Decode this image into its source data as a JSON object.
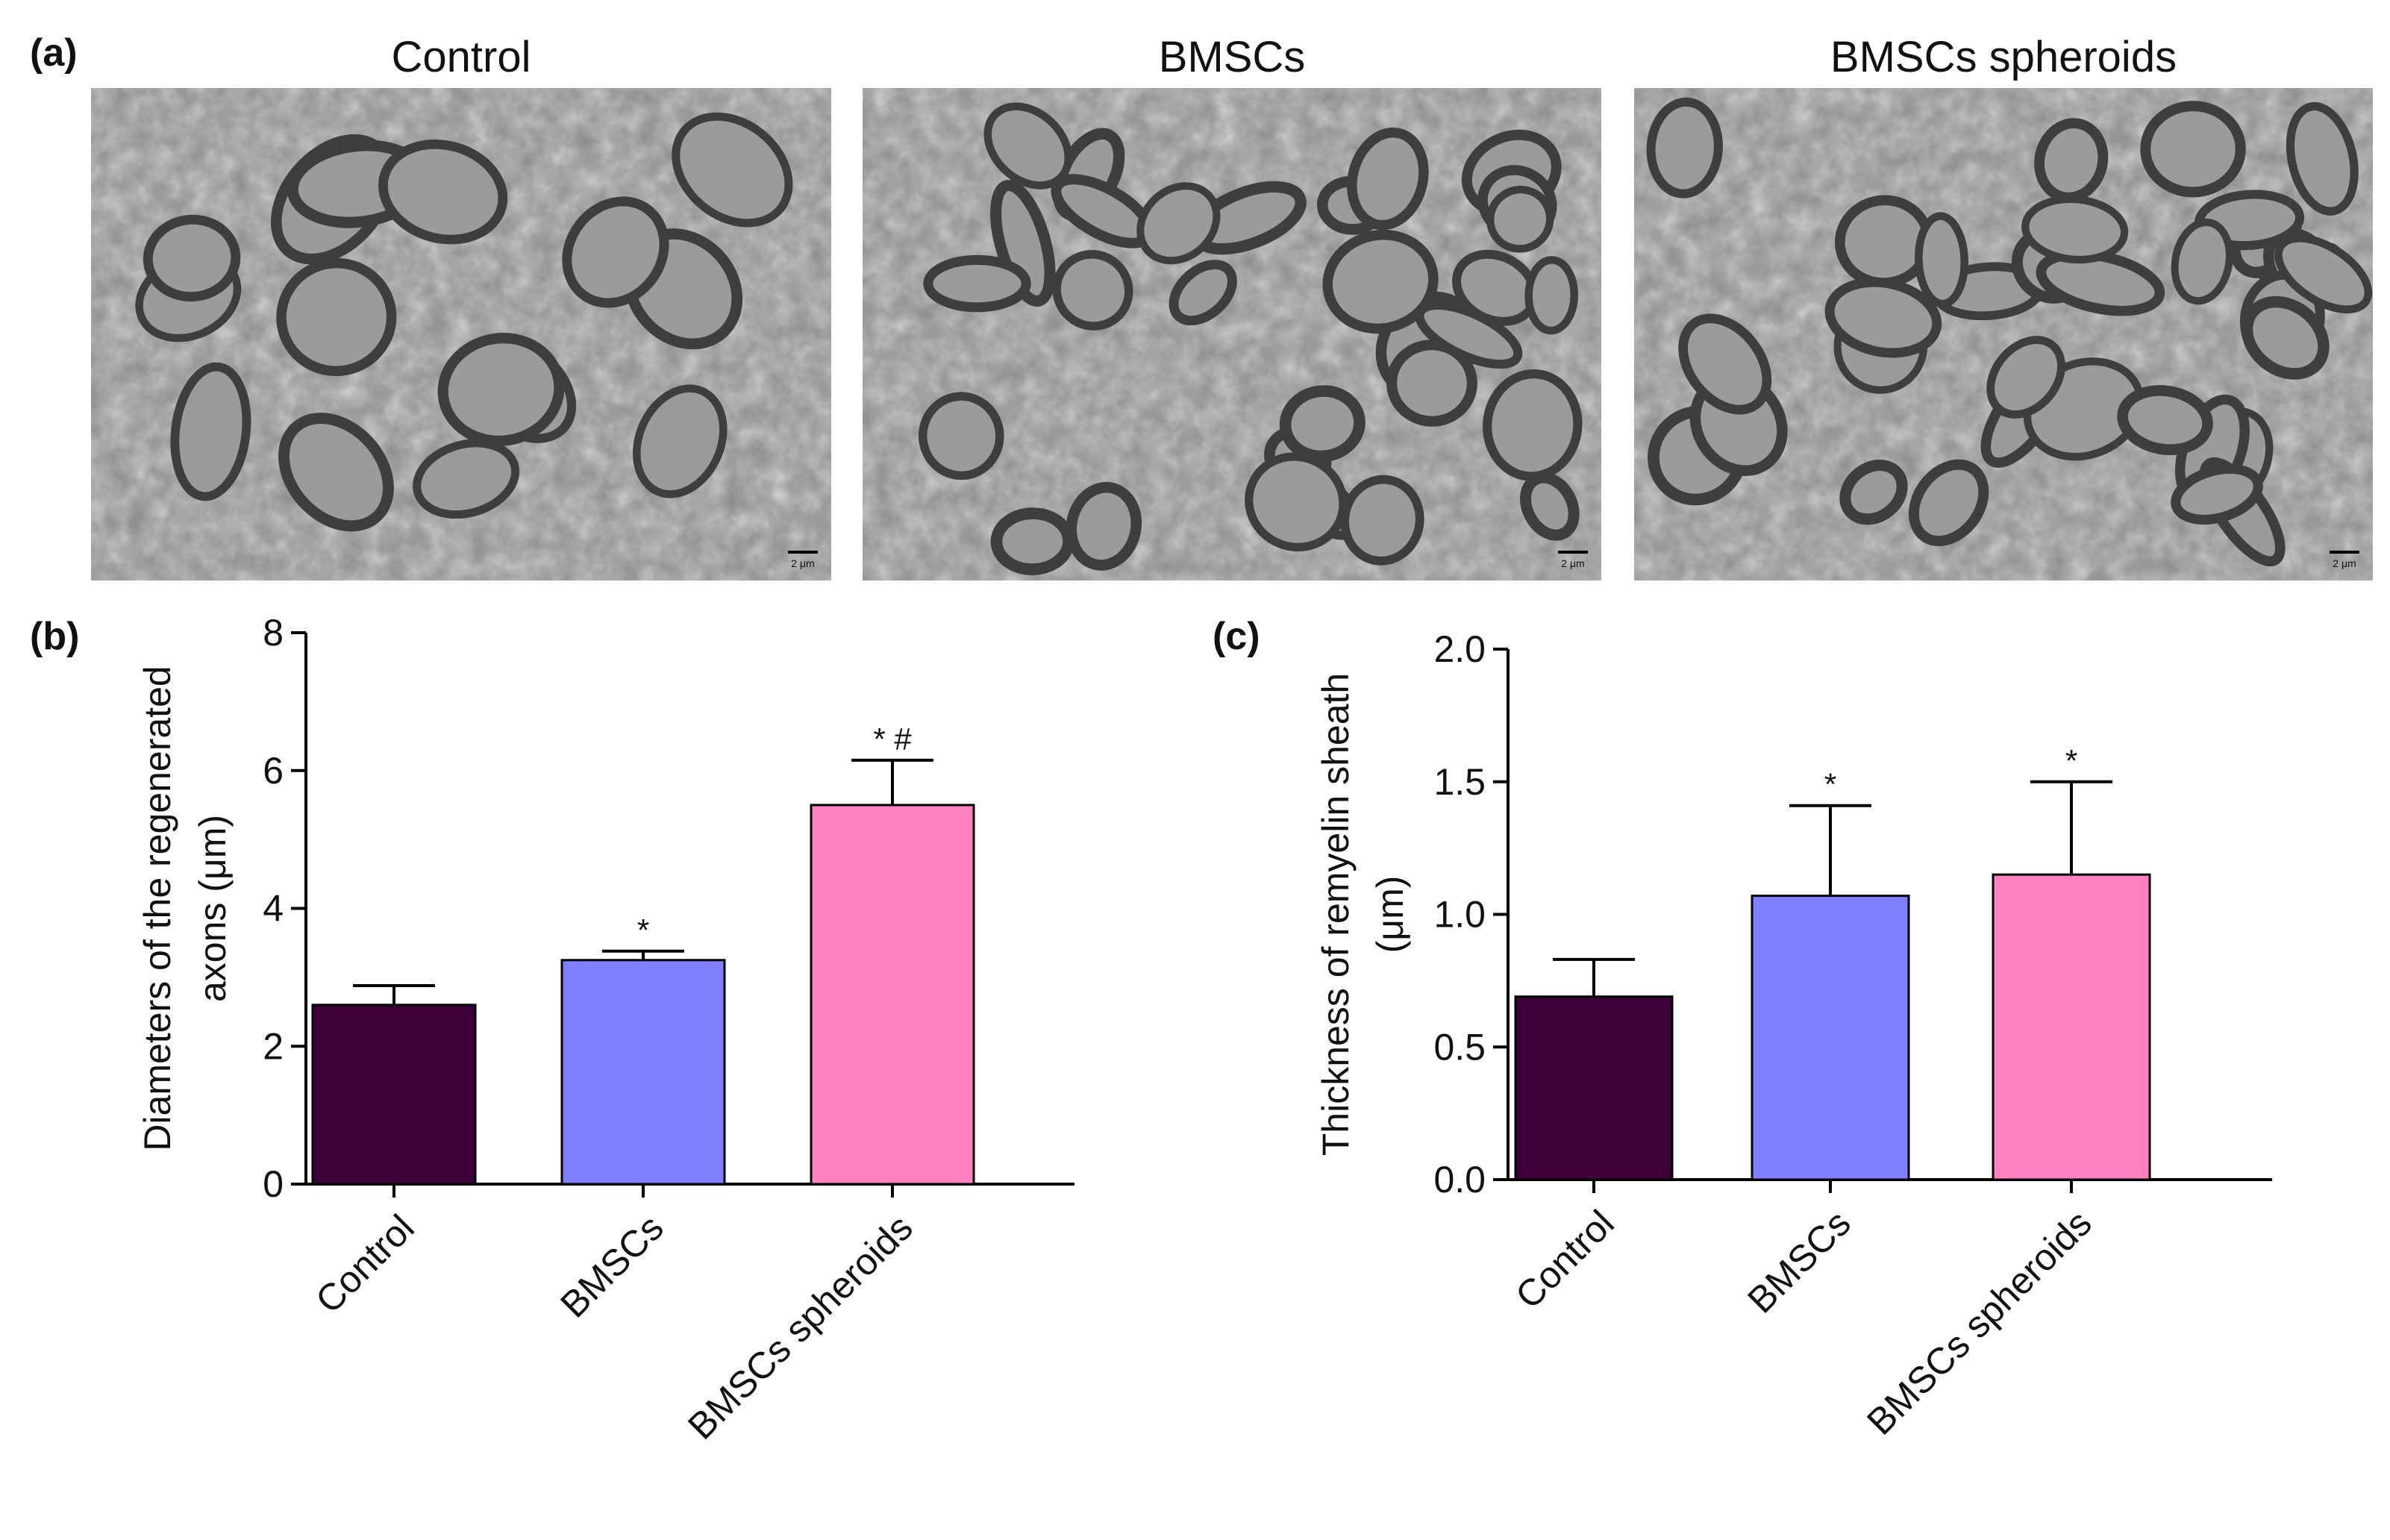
{
  "panel_labels": {
    "a": "(a)",
    "b": "(b)",
    "c": "(c)"
  },
  "images": [
    {
      "title": "Control",
      "scale_bar": "2 μm"
    },
    {
      "title": "BMSCs",
      "scale_bar": "2 μm"
    },
    {
      "title": "BMSCs spheroids",
      "scale_bar": "2 μm"
    }
  ],
  "colors": {
    "control": "#3d0039",
    "bmscs": "#8080ff",
    "spheroids": "#ff80c0"
  },
  "chart_data": [
    {
      "type": "bar",
      "panel": "(b)",
      "categories": [
        "Control",
        "BMSCs",
        "BMSCs spheroids"
      ],
      "values": [
        2.6,
        3.25,
        5.5
      ],
      "errors": [
        0.28,
        0.13,
        0.65
      ],
      "significance": [
        "",
        "*",
        "* #"
      ],
      "ylabel_line1": "Diameters of the regenerated",
      "ylabel_line2": "axons (μm)",
      "ylim": [
        0,
        8
      ],
      "yticks": [
        "0",
        "2",
        "4",
        "6",
        "8"
      ],
      "ytick_values": [
        0,
        2,
        4,
        6,
        8
      ]
    },
    {
      "type": "bar",
      "panel": "(c)",
      "categories": [
        "Control",
        "BMSCs",
        "BMSCs spheroids"
      ],
      "values": [
        0.69,
        1.07,
        1.15
      ],
      "errors": [
        0.14,
        0.34,
        0.35
      ],
      "significance": [
        "",
        "*",
        "*"
      ],
      "ylabel_line1": "Thickness of remyelin sheath",
      "ylabel_line2": "(μm)",
      "ylim": [
        0,
        2.0
      ],
      "yticks": [
        "0.0",
        "0.5",
        "1.0",
        "1.5",
        "2.0"
      ],
      "ytick_values": [
        0,
        0.5,
        1.0,
        1.5,
        2.0
      ]
    }
  ]
}
